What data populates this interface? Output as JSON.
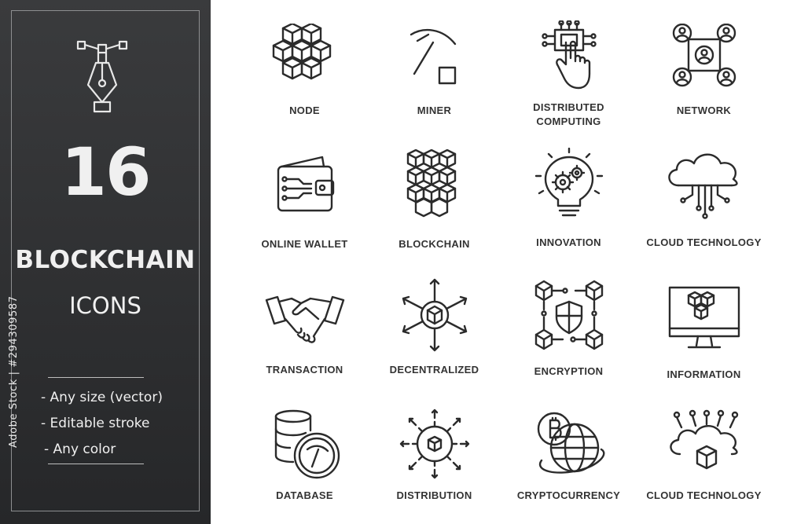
{
  "panel": {
    "count": "16",
    "title": "BLOCKCHAIN",
    "subtitle": "ICONS",
    "features": [
      "- Any size (vector)",
      "- Editable stroke",
      "- Any color"
    ],
    "stock_id": "Adobe Stock | #294309587"
  },
  "icons": [
    {
      "label": "NODE",
      "icon": "node-cubes-icon"
    },
    {
      "label": "MINER",
      "icon": "pickaxe-icon"
    },
    {
      "label": "DISTRIBUTED\nCOMPUTING",
      "icon": "chip-hand-icon"
    },
    {
      "label": "NETWORK",
      "icon": "network-users-icon"
    },
    {
      "label": "ONLINE WALLET",
      "icon": "wallet-icon"
    },
    {
      "label": "BLOCKCHAIN",
      "icon": "blockchain-cubes-icon"
    },
    {
      "label": "INNOVATION",
      "icon": "lightbulb-gears-icon"
    },
    {
      "label": "CLOUD TECHNOLOGY",
      "icon": "cloud-circuit-icon"
    },
    {
      "label": "TRANSACTION",
      "icon": "handshake-icon"
    },
    {
      "label": "DECENTRALIZED",
      "icon": "decentralized-arrows-icon"
    },
    {
      "label": "ENCRYPTION",
      "icon": "shield-cubes-icon"
    },
    {
      "label": "INFORMATION",
      "icon": "monitor-cubes-icon"
    },
    {
      "label": "DATABASE",
      "icon": "database-pickaxe-icon"
    },
    {
      "label": "DISTRIBUTION",
      "icon": "gear-arrows-icon"
    },
    {
      "label": "CRYPTOCURRENCY",
      "icon": "bitcoin-globe-icon"
    },
    {
      "label": "CLOUD TECHNOLOGY",
      "icon": "cloud-cube-icon"
    }
  ],
  "colors": {
    "panel": "#2f3032",
    "text_light": "#f0f0f0",
    "icon_stroke": "#2b2b2b",
    "label": "#333333"
  }
}
